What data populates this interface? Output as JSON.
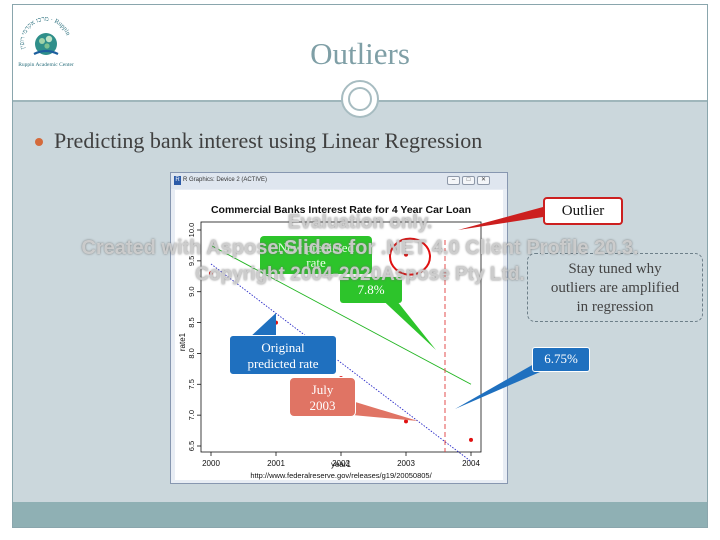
{
  "slide": {
    "title": "Outliers",
    "bullet": "Predicting bank interest using Linear Regression"
  },
  "logo": {
    "text": "Ruppin Academic Center"
  },
  "r_window": {
    "title": "R Graphics: Device 2 (ACTIVE)",
    "icon": "R"
  },
  "chart_data": {
    "type": "scatter",
    "title": "Commercial Banks Interest Rate for 4 Year Car Loan",
    "xlabel": "year1",
    "ylabel": "rate1",
    "caption": "http://www.federalreserve.gov/releases/g19/20050805/",
    "xlim": [
      2000,
      2004
    ],
    "ylim": [
      6.5,
      10
    ],
    "x_ticks": [
      "2000",
      "2001",
      "2002",
      "2003",
      "2004"
    ],
    "y_ticks": [
      "6.5",
      "7.0",
      "7.5",
      "8.0",
      "8.5",
      "9.0",
      "9.5",
      "10.0"
    ],
    "points": [
      {
        "x": 2000,
        "y": 9.3
      },
      {
        "x": 2001,
        "y": 8.5
      },
      {
        "x": 2002,
        "y": 7.6
      },
      {
        "x": 2003,
        "y": 6.9
      },
      {
        "x": 2003,
        "y": 9.6
      },
      {
        "x": 2004,
        "y": 6.6
      }
    ],
    "lines": [
      {
        "color": "#2a2ac8",
        "dash": "dotted",
        "x": [
          2000,
          2004
        ],
        "y": [
          9.45,
          6.25
        ]
      },
      {
        "color": "#22b522",
        "dash": "solid",
        "x": [
          2000,
          2004
        ],
        "y": [
          9.75,
          7.5
        ]
      }
    ],
    "vline": {
      "x": 2003.6,
      "color": "#e03c3c"
    },
    "grid": false
  },
  "callouts": {
    "outlier": "Outlier",
    "stay_tuned": [
      "Stay tuned why",
      "outliers are amplified",
      "in regression"
    ],
    "six_seventy_five": "6.75%",
    "original": [
      "Original",
      "predicted rate"
    ],
    "july": [
      "July",
      "2003"
    ],
    "new_predicted": [
      "New predicted",
      "rate"
    ],
    "seven_eight": "7.8%"
  },
  "watermark": {
    "line1": "Evaluation only.",
    "line2": "Created with Aspose.Slides for .NET 4.0 Client Profile 20.3.",
    "line3": "Copyright 2004-2020Aspose Pty Ltd."
  },
  "colors": {
    "title": "#7f9fa6",
    "content_bg": "#cbd7dc",
    "footer_band": "#8fb0b4",
    "bullet": "#d46a3b",
    "blue_callout": "#1f70bf",
    "green_callout": "#2dc42b",
    "red_callout": "#e07464",
    "outlier_border": "#cc1f1f"
  }
}
